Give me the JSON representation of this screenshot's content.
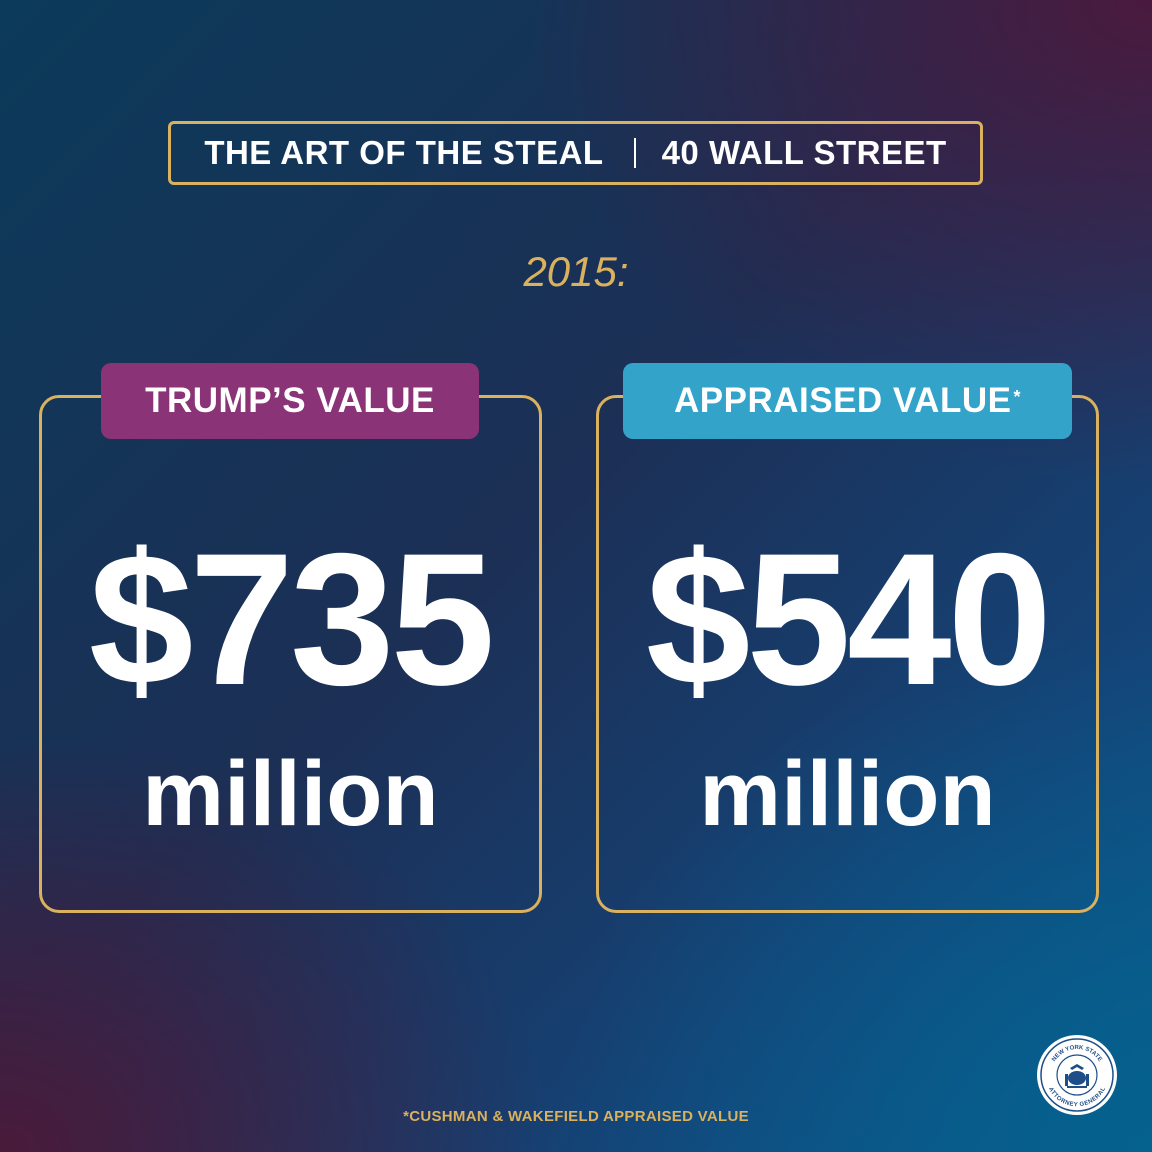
{
  "header": {
    "title": "THE ART OF THE STEAL",
    "subtitle": "40 WALL STREET"
  },
  "year_label": "2015:",
  "cards": {
    "trump": {
      "label": "TRUMP’S VALUE",
      "amount": "$735",
      "unit": "million",
      "pill_color": "#8a3377"
    },
    "appraised": {
      "label": "APPRAISED VALUE",
      "label_mark": "*",
      "amount": "$540",
      "unit": "million",
      "pill_color": "#33a3c9"
    }
  },
  "footnote": "*CUSHMAN & WAKEFIELD APPRAISED VALUE",
  "seal": {
    "top_text": "NEW YORK STATE",
    "bottom_text": "ATTORNEY GENERAL",
    "icon": "state-seal-icon"
  },
  "colors": {
    "accent_gold": "#d9b15f",
    "text": "#ffffff"
  }
}
